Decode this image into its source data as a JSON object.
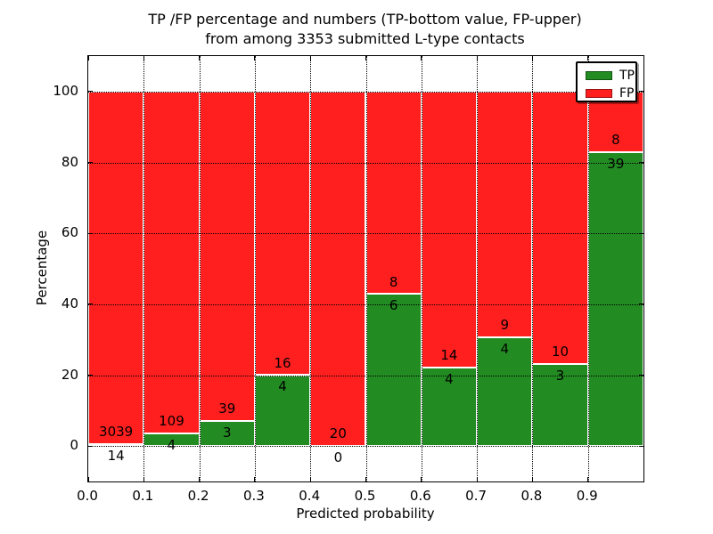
{
  "chart_data": {
    "type": "bar",
    "stacked": true,
    "normalized_to_percent": true,
    "title": "TP /FP percentage and numbers (TP-bottom value, FP-upper)",
    "subtitle": "from among 3353 submitted L-type contacts",
    "xlabel": "Predicted probability",
    "ylabel": "Percentage",
    "xlim": [
      0.0,
      1.0
    ],
    "ylim": [
      -10,
      110
    ],
    "grid": true,
    "legend_position": "upper right",
    "bin_width": 0.1,
    "x_ticks": [
      0.0,
      0.1,
      0.2,
      0.3,
      0.4,
      0.5,
      0.6,
      0.7,
      0.8,
      0.9
    ],
    "x_tick_labels": [
      "0.0",
      "0.1",
      "0.2",
      "0.3",
      "0.4",
      "0.5",
      "0.6",
      "0.7",
      "0.8",
      "0.9"
    ],
    "y_ticks": [
      0,
      20,
      40,
      60,
      80,
      100
    ],
    "y_tick_labels": [
      "0",
      "20",
      "40",
      "60",
      "80",
      "100"
    ],
    "bins": [
      {
        "x_start": 0.0,
        "x_end": 0.1,
        "tp": 14,
        "fp": 3039
      },
      {
        "x_start": 0.1,
        "x_end": 0.2,
        "tp": 4,
        "fp": 109
      },
      {
        "x_start": 0.2,
        "x_end": 0.3,
        "tp": 3,
        "fp": 39
      },
      {
        "x_start": 0.3,
        "x_end": 0.4,
        "tp": 4,
        "fp": 16
      },
      {
        "x_start": 0.4,
        "x_end": 0.5,
        "tp": 0,
        "fp": 20
      },
      {
        "x_start": 0.5,
        "x_end": 0.6,
        "tp": 6,
        "fp": 8
      },
      {
        "x_start": 0.6,
        "x_end": 0.7,
        "tp": 4,
        "fp": 14
      },
      {
        "x_start": 0.7,
        "x_end": 0.8,
        "tp": 4,
        "fp": 9
      },
      {
        "x_start": 0.8,
        "x_end": 0.9,
        "tp": 3,
        "fp": 10
      },
      {
        "x_start": 0.9,
        "x_end": 1.0,
        "tp": 39,
        "fp": 8
      }
    ],
    "legend": [
      {
        "label": "TP",
        "color": "#228c22"
      },
      {
        "label": "FP",
        "color": "#ff1f1f"
      }
    ],
    "colors": {
      "tp": "#228c22",
      "fp": "#ff1f1f",
      "grid": "#000000",
      "bar_edge": "#ffffff",
      "background": "#ffffff",
      "text": "#000000"
    }
  }
}
